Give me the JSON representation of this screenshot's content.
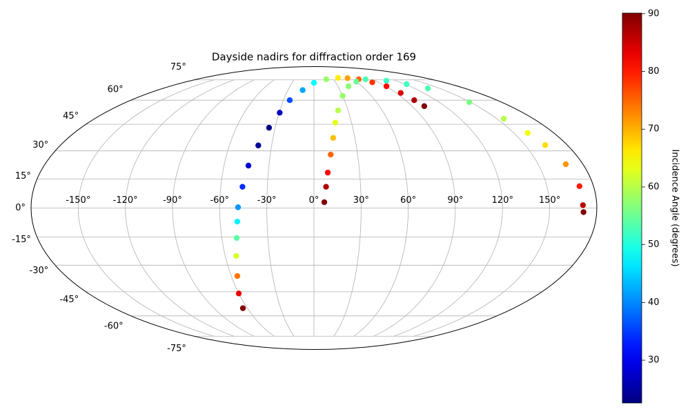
{
  "chart_data": {
    "type": "scatter",
    "projection": "mollweide",
    "title": "Dayside nadirs for diffraction order 169",
    "series": [
      {
        "x": [
          -64,
          -60,
          -55.6,
          -52.5,
          -50.3,
          -49,
          -48.3,
          -46,
          -43.7,
          -39.5,
          -34.7,
          -29.5,
          -23.8,
          -13,
          0,
          19,
          39.2,
          54,
          68.8,
          81,
          90.7,
          95,
          98.6,
          101.2
        ],
        "y": [
          -55,
          -46,
          -36,
          -25,
          -15.5,
          -7,
          0.4,
          11,
          22.1,
          33,
          43,
          52,
          60,
          67,
          72.6,
          75.5,
          76.7,
          76.5,
          75.5,
          73,
          69.9,
          65,
          60,
          56.1
        ],
        "values": [
          90,
          83,
          74,
          62,
          54,
          47,
          41,
          34,
          28,
          24,
          23,
          27,
          36,
          42,
          48,
          58,
          66,
          71,
          75,
          78,
          81,
          84,
          87,
          90
        ]
      },
      {
        "x": [
          6.6,
          7.8,
          9.1,
          11.5,
          14.1,
          17,
          21.2,
          30,
          43.2,
          60,
          79.3,
          105.7,
          122,
          135.9,
          149,
          155.7,
          160.5,
          164.3,
          168.5,
          171,
          171.2,
          171.6
        ],
        "y": [
          3,
          11,
          18.4,
          28,
          37.2,
          46,
          53.4,
          63,
          69.9,
          73.5,
          75.5,
          74.3,
          71.5,
          68.3,
          58.7,
          48.3,
          40,
          33.2,
          22.8,
          11.3,
          1.5,
          -2.1
        ],
        "values": [
          90,
          87,
          82,
          75,
          69,
          63,
          60,
          58,
          57,
          55,
          53,
          52,
          52,
          53,
          56,
          60,
          64,
          67,
          72,
          80,
          86,
          90
        ]
      }
    ],
    "xticks": [
      {
        "value": -150,
        "label": "-150°"
      },
      {
        "value": -120,
        "label": "-120°"
      },
      {
        "value": -90,
        "label": "-90°"
      },
      {
        "value": -60,
        "label": "-60°"
      },
      {
        "value": -30,
        "label": "-30°"
      },
      {
        "value": 0,
        "label": "0°"
      },
      {
        "value": 30,
        "label": "30°"
      },
      {
        "value": 60,
        "label": "60°"
      },
      {
        "value": 90,
        "label": "90°"
      },
      {
        "value": 120,
        "label": "120°"
      },
      {
        "value": 150,
        "label": "150°"
      }
    ],
    "yticks": [
      {
        "value": -75,
        "label": "-75°"
      },
      {
        "value": -60,
        "label": "-60°"
      },
      {
        "value": -45,
        "label": "-45°"
      },
      {
        "value": -30,
        "label": "-30°"
      },
      {
        "value": -15,
        "label": "-15°"
      },
      {
        "value": 0,
        "label": "0°"
      },
      {
        "value": 15,
        "label": "15°"
      },
      {
        "value": 30,
        "label": "30°"
      },
      {
        "value": 45,
        "label": "45°"
      },
      {
        "value": 60,
        "label": "60°"
      },
      {
        "value": 75,
        "label": "75°"
      }
    ],
    "grid": true,
    "colormap": "jet",
    "colorbar": {
      "label": "Incidence Angle (degrees)",
      "clim": [
        22.6,
        90.1
      ],
      "ticks": [
        30,
        40,
        50,
        60,
        70,
        80,
        90
      ]
    }
  }
}
